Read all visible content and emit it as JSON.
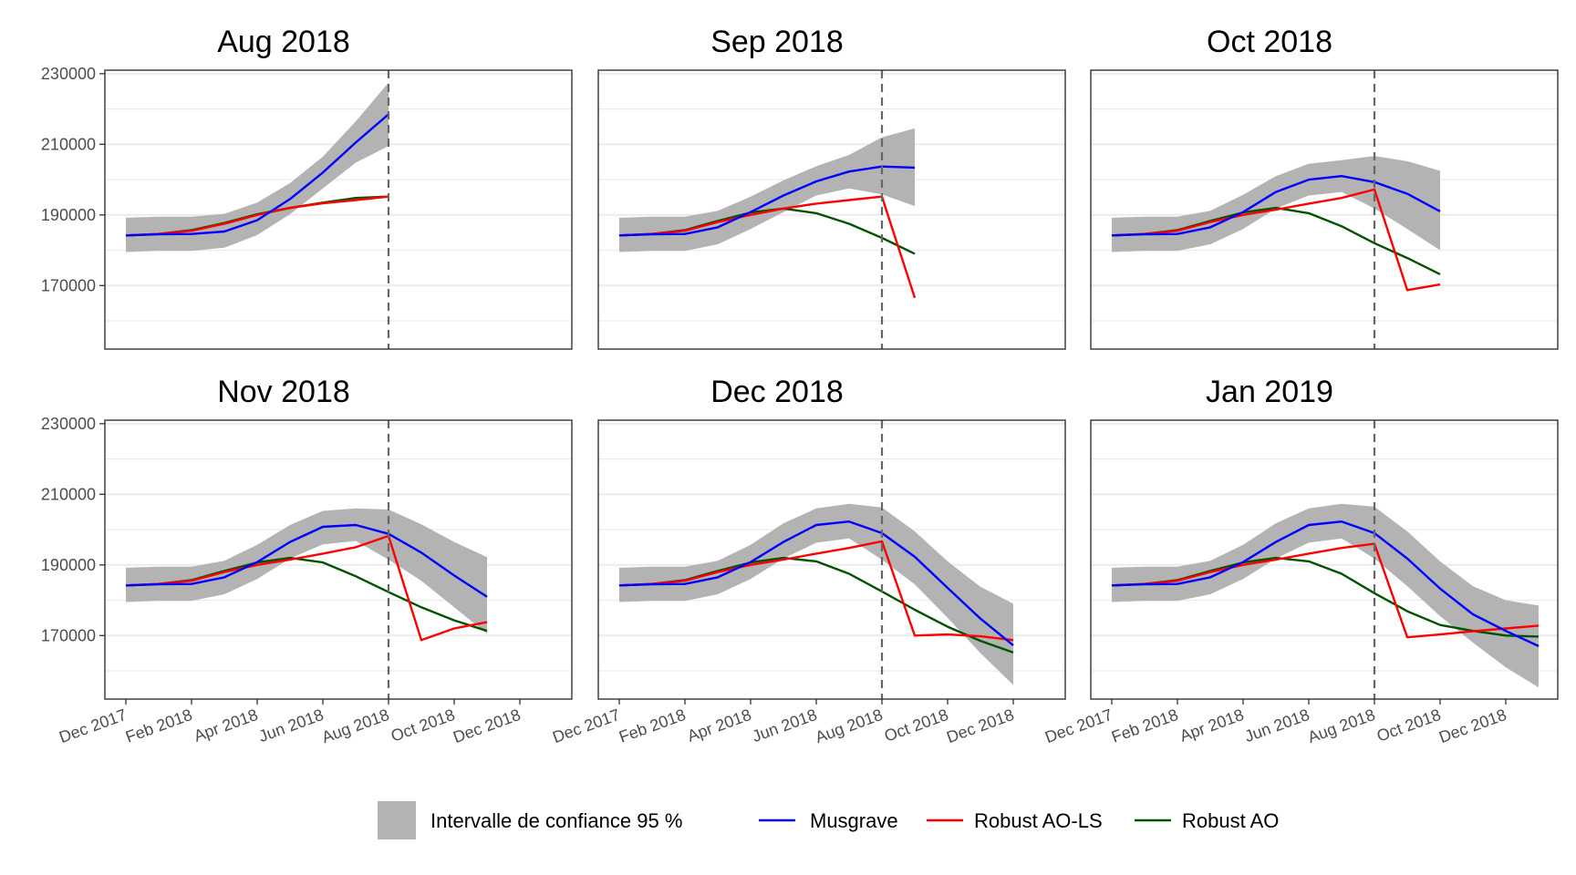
{
  "chart_data": {
    "type": "line",
    "layout": "facet-2x3",
    "x_tick_labels": [
      "Dec 2017",
      "Feb 2018",
      "Apr 2018",
      "Jun 2018",
      "Aug 2018",
      "Oct 2018",
      "Dec 2018"
    ],
    "x_ticks": [
      "2017-12",
      "2018-02",
      "2018-04",
      "2018-06",
      "2018-08",
      "2018-10",
      "2018-12"
    ],
    "x_range": [
      "2017-12",
      "2019-01"
    ],
    "y_tick_labels": [
      "170000",
      "190000",
      "210000",
      "230000"
    ],
    "y_ticks": [
      170000,
      190000,
      210000,
      230000
    ],
    "ylim": [
      152000,
      231000
    ],
    "grid": true,
    "reference_line": {
      "x": "2018-08",
      "style": "dashed"
    },
    "legend": {
      "position": "bottom",
      "ci_label": "Intervalle de confiance 95 %",
      "items": [
        {
          "key": "musgrave",
          "name": "Musgrave",
          "color": "#0000ff"
        },
        {
          "key": "aols",
          "name": "Robust AO-LS",
          "color": "#ff0000"
        },
        {
          "key": "ao",
          "name": "Robust AO",
          "color": "#005300"
        }
      ]
    },
    "ci_color": "#b3b3b3",
    "panels": [
      {
        "title": "Aug 2018",
        "x": [
          "2017-12",
          "2018-01",
          "2018-02",
          "2018-03",
          "2018-04",
          "2018-05",
          "2018-06",
          "2018-07",
          "2018-08"
        ],
        "musgrave": [
          184200,
          184500,
          184600,
          185300,
          188500,
          194500,
          202000,
          210500,
          218500
        ],
        "ci_low": [
          179500,
          179800,
          179800,
          180700,
          184300,
          190200,
          197500,
          204800,
          209500
        ],
        "ci_high": [
          189200,
          189500,
          189500,
          190300,
          193500,
          199000,
          206500,
          216500,
          227500
        ],
        "aols": [
          184200,
          184600,
          185500,
          187500,
          190000,
          192000,
          193300,
          194200,
          195200
        ],
        "ao": [
          184200,
          184600,
          185700,
          187700,
          190200,
          192000,
          193500,
          194800,
          195200
        ]
      },
      {
        "title": "Sep 2018",
        "x": [
          "2017-12",
          "2018-01",
          "2018-02",
          "2018-03",
          "2018-04",
          "2018-05",
          "2018-06",
          "2018-07",
          "2018-08",
          "2018-09"
        ],
        "musgrave": [
          184200,
          184500,
          184600,
          186500,
          190800,
          195500,
          199500,
          202300,
          203700,
          203400
        ],
        "ci_low": [
          179500,
          179800,
          179800,
          181700,
          186000,
          190800,
          195500,
          197500,
          195800,
          192500
        ],
        "ci_high": [
          189200,
          189500,
          189500,
          191200,
          195200,
          199800,
          203800,
          207000,
          212000,
          214500
        ],
        "aols": [
          184200,
          184600,
          185500,
          188000,
          190000,
          191800,
          193200,
          194200,
          195200,
          166500
        ],
        "ao": [
          184200,
          184600,
          185700,
          188300,
          190700,
          191800,
          190500,
          187500,
          183500,
          179000
        ]
      },
      {
        "title": "Oct 2018",
        "x": [
          "2017-12",
          "2018-01",
          "2018-02",
          "2018-03",
          "2018-04",
          "2018-05",
          "2018-06",
          "2018-07",
          "2018-08",
          "2018-09",
          "2018-10"
        ],
        "musgrave": [
          184200,
          184500,
          184600,
          186500,
          190800,
          196500,
          200000,
          201000,
          199300,
          196000,
          191000
        ],
        "ci_low": [
          179500,
          179800,
          179800,
          181700,
          186000,
          191800,
          195500,
          196500,
          191800,
          186000,
          180000
        ],
        "ci_high": [
          189200,
          189500,
          189500,
          191200,
          195700,
          201000,
          204500,
          205500,
          206700,
          205200,
          202500
        ],
        "aols": [
          184200,
          184600,
          185500,
          188000,
          190000,
          191500,
          193200,
          194800,
          197200,
          168700,
          170300
        ],
        "ao": [
          184200,
          184600,
          185700,
          188300,
          190700,
          192000,
          190500,
          186800,
          182000,
          177800,
          173200
        ]
      },
      {
        "title": "Nov 2018",
        "x": [
          "2017-12",
          "2018-01",
          "2018-02",
          "2018-03",
          "2018-04",
          "2018-05",
          "2018-06",
          "2018-07",
          "2018-08",
          "2018-09",
          "2018-10",
          "2018-11"
        ],
        "musgrave": [
          184200,
          184500,
          184600,
          186500,
          190800,
          196500,
          200800,
          201300,
          198800,
          193500,
          187000,
          181000
        ],
        "ci_low": [
          179500,
          179800,
          179800,
          181700,
          186000,
          191800,
          195800,
          196800,
          191500,
          185500,
          178000,
          170500
        ],
        "ci_high": [
          189200,
          189500,
          189500,
          191200,
          195700,
          201300,
          205300,
          206000,
          205700,
          201500,
          196500,
          192200
        ],
        "aols": [
          184200,
          184600,
          185500,
          188000,
          190000,
          191500,
          193200,
          195000,
          198200,
          168700,
          172000,
          173800
        ],
        "ao": [
          184200,
          184600,
          185700,
          188300,
          190700,
          192000,
          190700,
          186800,
          182300,
          178000,
          174300,
          171300
        ]
      },
      {
        "title": "Dec 2018",
        "x": [
          "2017-12",
          "2018-01",
          "2018-02",
          "2018-03",
          "2018-04",
          "2018-05",
          "2018-06",
          "2018-07",
          "2018-08",
          "2018-09",
          "2018-10",
          "2018-11",
          "2018-12"
        ],
        "musgrave": [
          184200,
          184500,
          184600,
          186500,
          190800,
          196500,
          201300,
          202300,
          199000,
          192300,
          183500,
          174800,
          167200
        ],
        "ci_low": [
          179500,
          179800,
          179800,
          181700,
          186000,
          191800,
          196300,
          197500,
          191500,
          184500,
          175000,
          165000,
          156000
        ],
        "ci_high": [
          189200,
          189500,
          189500,
          191200,
          195700,
          201800,
          206000,
          207300,
          206300,
          199500,
          191000,
          183800,
          179000
        ],
        "aols": [
          184200,
          184600,
          185500,
          188000,
          190000,
          191500,
          193200,
          194800,
          196700,
          170000,
          170300,
          169800,
          168700
        ],
        "ao": [
          184200,
          184600,
          185700,
          188300,
          190700,
          192000,
          191000,
          187500,
          182500,
          177300,
          172500,
          168500,
          165200
        ]
      },
      {
        "title": "Jan 2019",
        "x": [
          "2017-12",
          "2018-01",
          "2018-02",
          "2018-03",
          "2018-04",
          "2018-05",
          "2018-06",
          "2018-07",
          "2018-08",
          "2018-09",
          "2018-10",
          "2018-11",
          "2018-12",
          "2019-01"
        ],
        "musgrave": [
          184200,
          184500,
          184600,
          186500,
          190800,
          196500,
          201300,
          202300,
          199000,
          191800,
          183300,
          176000,
          171300,
          167000
        ],
        "ci_low": [
          179500,
          179800,
          179800,
          181700,
          186000,
          191800,
          196300,
          197500,
          191800,
          184000,
          175500,
          168000,
          161000,
          155300
        ],
        "ci_high": [
          189200,
          189500,
          189500,
          191200,
          195700,
          201800,
          206000,
          207300,
          206500,
          199500,
          191000,
          184000,
          180000,
          178500
        ],
        "aols": [
          184200,
          184600,
          185500,
          188000,
          190000,
          191500,
          193200,
          194800,
          196000,
          169500,
          170300,
          171200,
          172000,
          172800
        ],
        "ao": [
          184200,
          184600,
          185700,
          188300,
          190700,
          192000,
          191000,
          187500,
          182000,
          176900,
          173000,
          171300,
          170000,
          169700
        ]
      }
    ]
  }
}
